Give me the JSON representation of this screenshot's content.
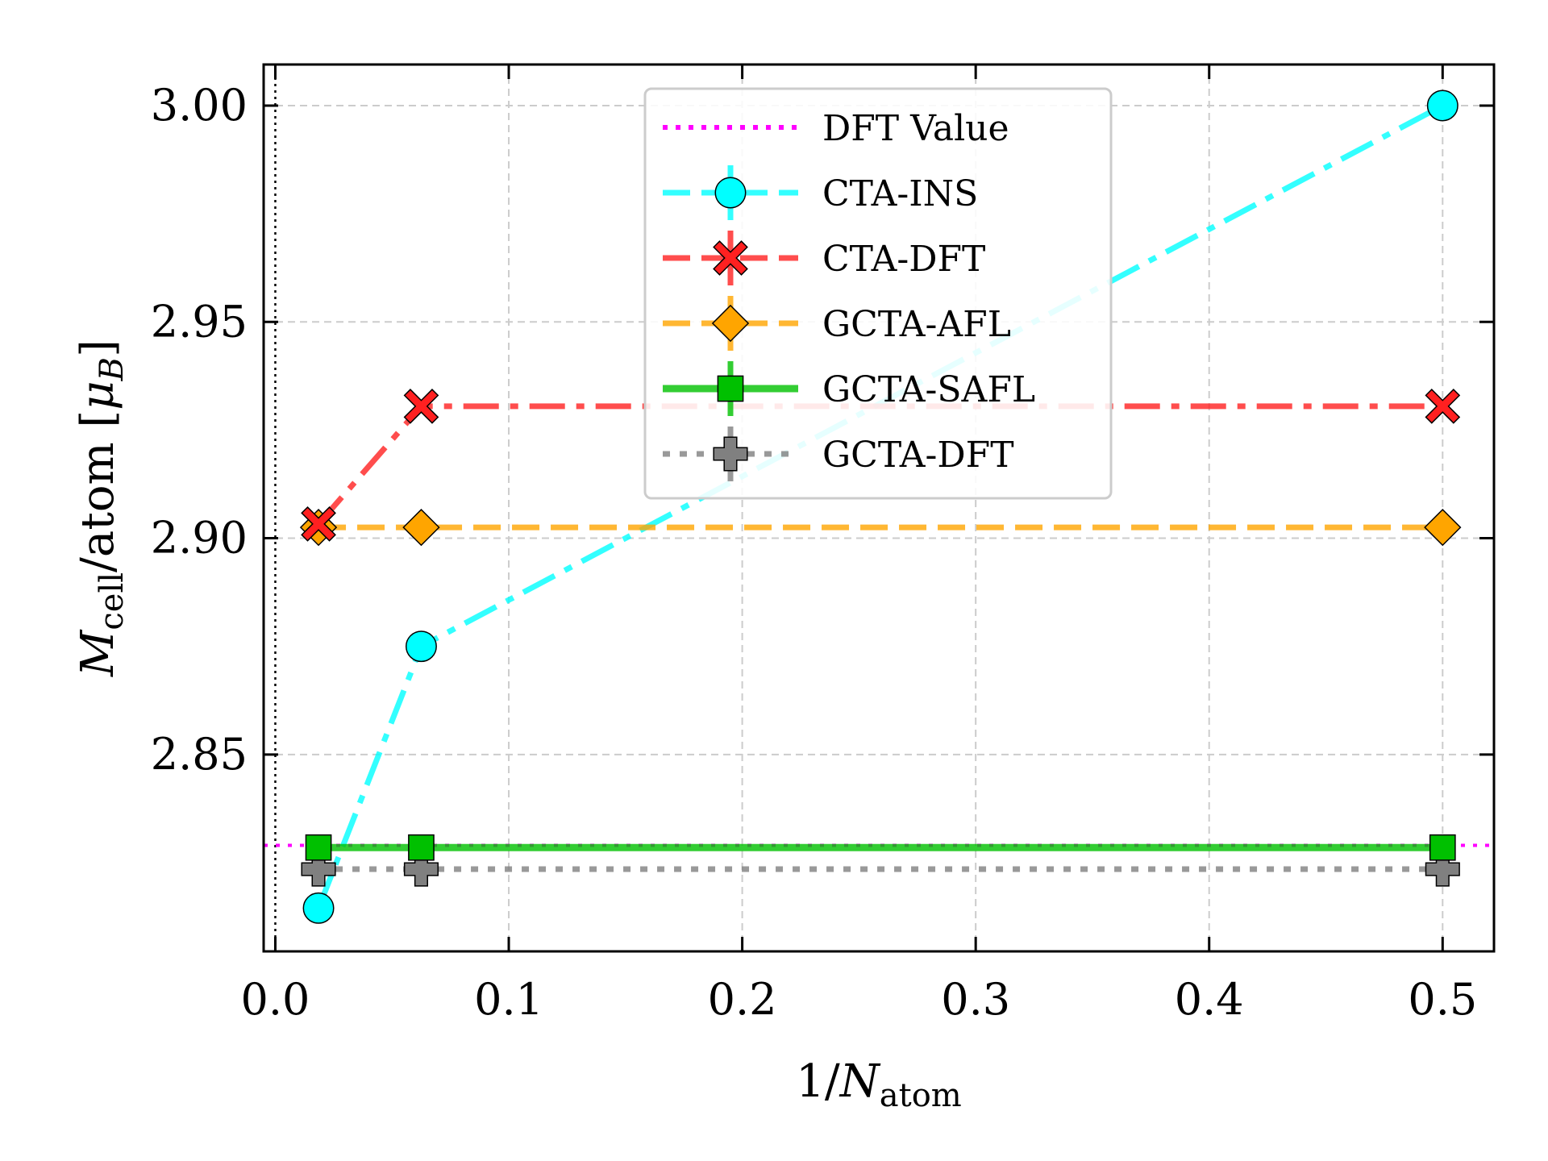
{
  "chart_data": {
    "type": "line",
    "title": "",
    "xlabel": {
      "main": "1/",
      "var": "N",
      "sub": "atom"
    },
    "ylabel": {
      "var": "M",
      "sub": "cell",
      "main": "/atom [",
      "unit_var": "μ",
      "unit_sub": "B",
      "close": "]"
    },
    "xlim": [
      -0.005,
      0.522
    ],
    "ylim": [
      2.8045,
      3.0095
    ],
    "xticks": [
      0.0,
      0.1,
      0.2,
      0.3,
      0.4,
      0.5
    ],
    "xtick_labels": [
      "0.0",
      "0.1",
      "0.2",
      "0.3",
      "0.4",
      "0.5"
    ],
    "yticks": [
      2.85,
      2.9,
      2.95,
      3.0
    ],
    "ytick_labels": [
      "2.85",
      "2.90",
      "2.95",
      "3.00"
    ],
    "grid": true,
    "legend_position": "top-center",
    "vertical_reference_x": 0.0,
    "series": [
      {
        "name": "DFT Value",
        "color": "#ff00ff",
        "style": "dotted",
        "marker": "none",
        "horizontal": true,
        "y": 2.829
      },
      {
        "name": "CTA-INS",
        "color": "#00ffff",
        "style": "dashdot",
        "marker": "circle",
        "x": [
          0.0185,
          0.0625,
          0.5
        ],
        "values": [
          2.8145,
          2.875,
          3.0
        ]
      },
      {
        "name": "CTA-DFT",
        "color": "#ff2020",
        "style": "dashdot",
        "marker": "x",
        "x": [
          0.0185,
          0.0625,
          0.5
        ],
        "values": [
          2.9033,
          2.9305,
          2.9305
        ]
      },
      {
        "name": "GCTA-AFL",
        "color": "#ffa500",
        "style": "dashed",
        "marker": "diamond",
        "x": [
          0.0185,
          0.0625,
          0.5
        ],
        "values": [
          2.9025,
          2.9025,
          2.9025
        ]
      },
      {
        "name": "GCTA-SAFL",
        "color": "#00c000",
        "style": "solid",
        "marker": "square",
        "x": [
          0.0185,
          0.0625,
          0.5
        ],
        "values": [
          2.8285,
          2.8285,
          2.8285
        ]
      },
      {
        "name": "GCTA-DFT",
        "color": "#808080",
        "style": "dotted",
        "marker": "plus",
        "x": [
          0.0185,
          0.0625,
          0.5
        ],
        "values": [
          2.8235,
          2.8235,
          2.8235
        ]
      }
    ]
  }
}
